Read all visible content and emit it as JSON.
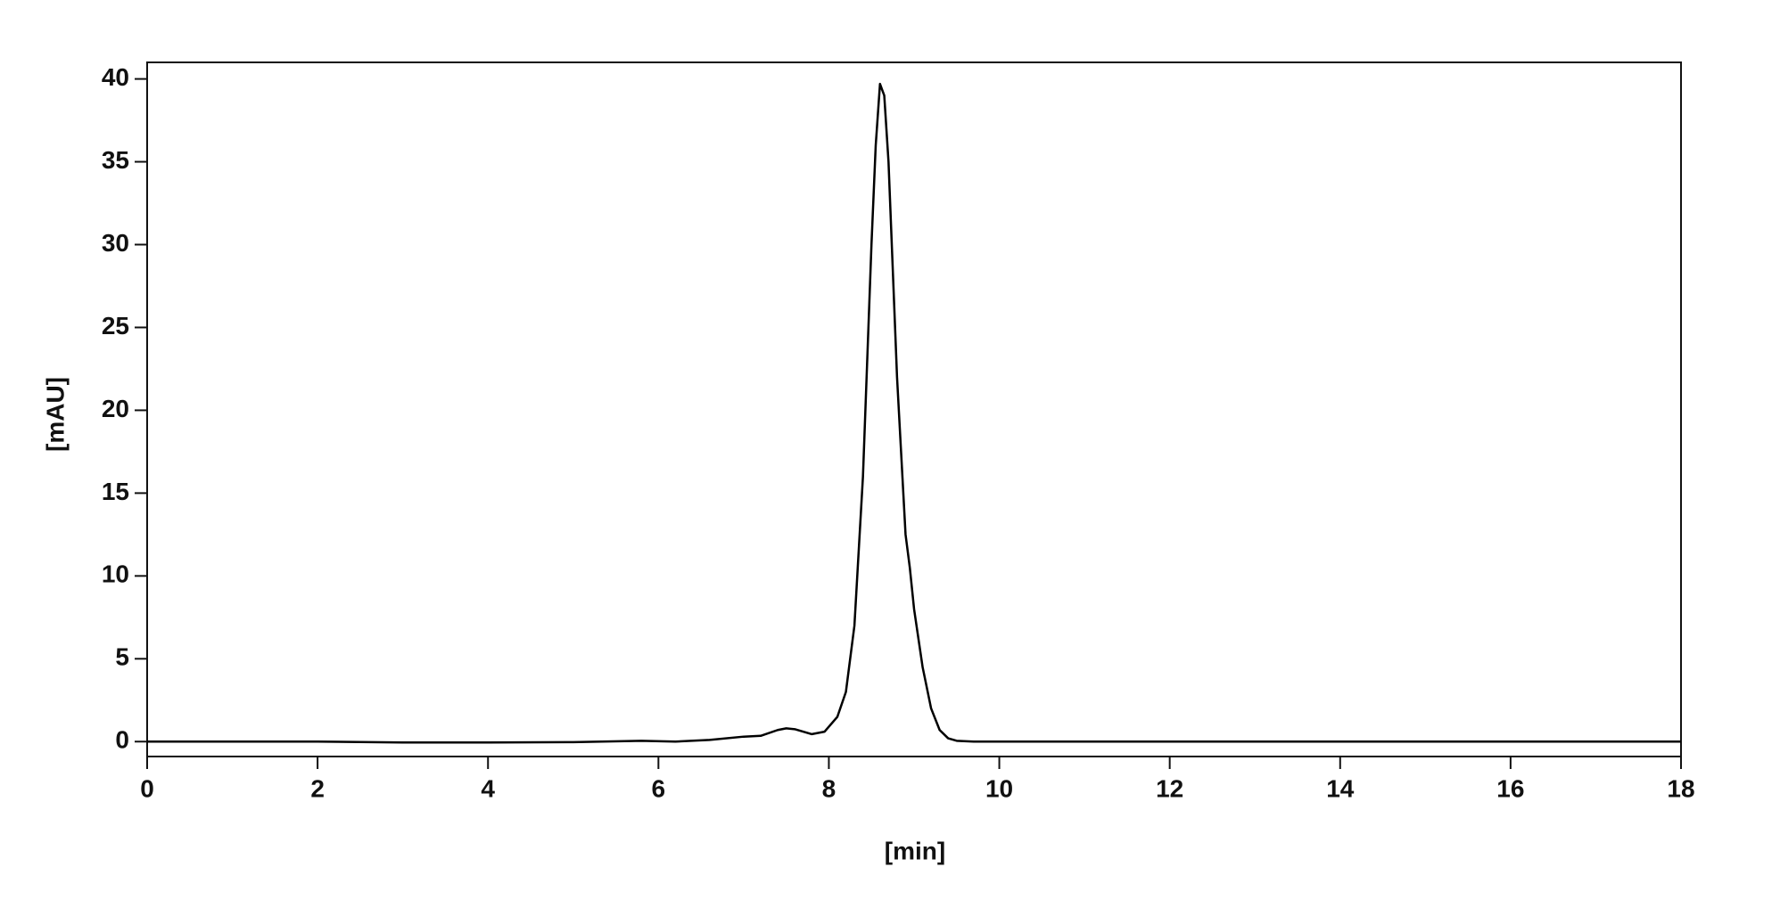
{
  "chart_data": {
    "type": "line",
    "x_label": "[min]",
    "y_label": "[mAU]",
    "x": [
      0,
      1,
      2,
      3,
      4,
      5,
      5.8,
      6.2,
      6.6,
      7.0,
      7.2,
      7.4,
      7.5,
      7.6,
      7.8,
      7.95,
      8.1,
      8.2,
      8.3,
      8.4,
      8.5,
      8.55,
      8.6,
      8.65,
      8.7,
      8.8,
      8.9,
      8.95,
      9.0,
      9.1,
      9.2,
      9.3,
      9.4,
      9.5,
      9.7,
      10,
      12,
      14,
      16,
      18
    ],
    "series": [
      {
        "color": "#000000",
        "values": [
          0,
          0,
          0,
          -0.05,
          -0.05,
          -0.03,
          0.05,
          0,
          0.1,
          0.3,
          0.35,
          0.7,
          0.8,
          0.75,
          0.45,
          0.6,
          1.5,
          3,
          7,
          16,
          30,
          36,
          39.7,
          39,
          35,
          22,
          12.5,
          10.5,
          8,
          4.5,
          2,
          0.7,
          0.2,
          0.05,
          0,
          0,
          0,
          0,
          0,
          0
        ]
      }
    ],
    "xlim": [
      0,
      18
    ],
    "xticks": [
      0,
      2,
      4,
      6,
      8,
      10,
      12,
      14,
      16,
      18
    ],
    "ylim": [
      -0.9,
      41
    ],
    "yticks": [
      0,
      5,
      10,
      15,
      20,
      25,
      30,
      35,
      40
    ]
  }
}
